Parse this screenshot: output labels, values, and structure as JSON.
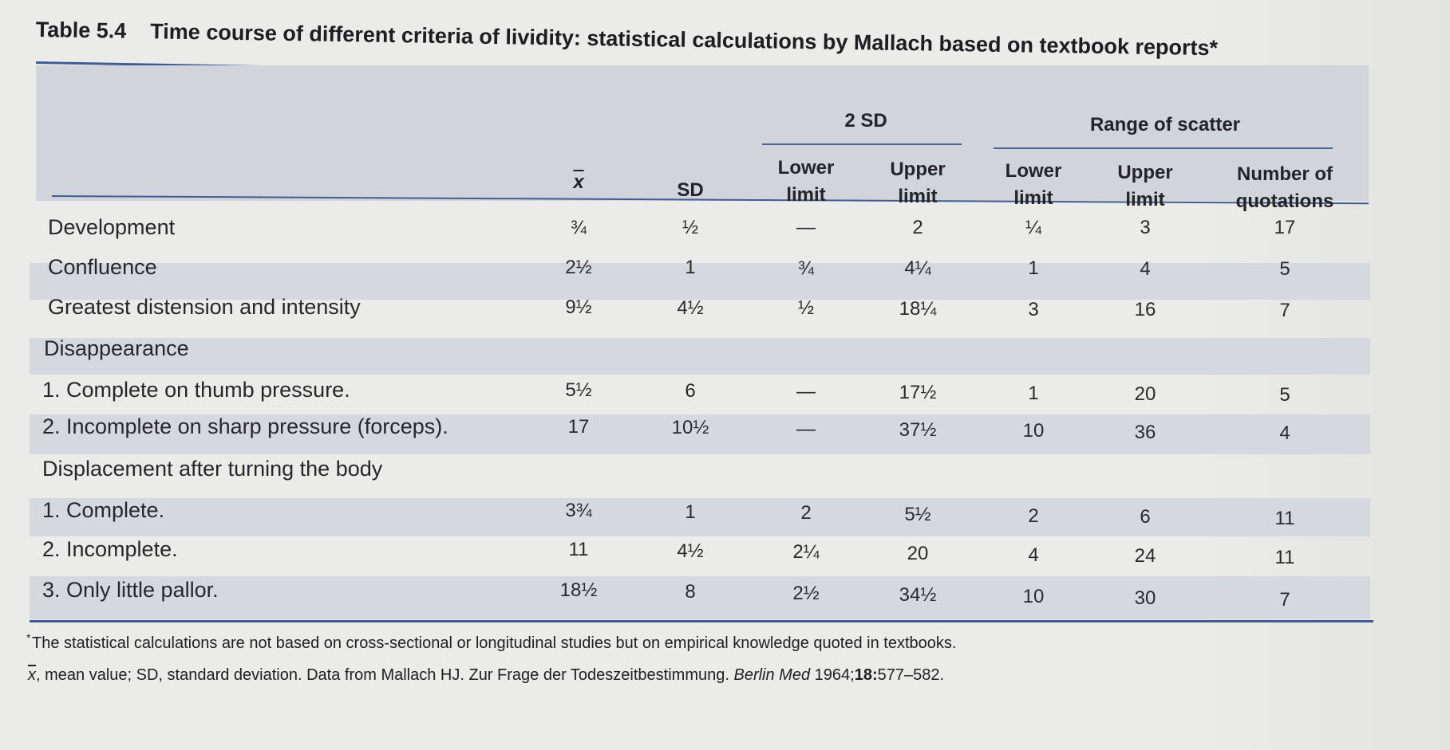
{
  "caption": {
    "number": "Table 5.4",
    "title": "Time course of different criteria of lividity: statistical calculations by Mallach based on textbook reports*"
  },
  "header": {
    "group_2sd": "2 SD",
    "group_range": "Range of scatter",
    "col_mean": "x",
    "col_sd": "SD",
    "col_lower_2sd": [
      "Lower",
      "limit"
    ],
    "col_upper_2sd": [
      "Upper",
      "limit"
    ],
    "col_lower_range": [
      "Lower",
      "limit"
    ],
    "col_upper_range": [
      "Upper",
      "limit"
    ],
    "col_quotations": [
      "Number of",
      "quotations"
    ]
  },
  "rows": [
    {
      "label": "Development",
      "mean": "¾",
      "sd": "½",
      "lower_2sd": "—",
      "upper_2sd": "2",
      "lower_range": "¼",
      "upper_range": "3",
      "quotations": "17"
    },
    {
      "label": "Confluence",
      "mean": "2½",
      "sd": "1",
      "lower_2sd": "¾",
      "upper_2sd": "4¼",
      "lower_range": "1",
      "upper_range": "4",
      "quotations": "5"
    },
    {
      "label": "Greatest distension and intensity",
      "mean": "9½",
      "sd": "4½",
      "lower_2sd": "½",
      "upper_2sd": "18¼",
      "lower_range": "3",
      "upper_range": "16",
      "quotations": "7"
    },
    {
      "label": "Disappearance",
      "mean": "",
      "sd": "",
      "lower_2sd": "",
      "upper_2sd": "",
      "lower_range": "",
      "upper_range": "",
      "quotations": ""
    },
    {
      "label": "1. Complete on thumb pressure.",
      "mean": "5½",
      "sd": "6",
      "lower_2sd": "—",
      "upper_2sd": "17½",
      "lower_range": "1",
      "upper_range": "20",
      "quotations": "5"
    },
    {
      "label": "2. Incomplete on sharp pressure (forceps).",
      "mean": "17",
      "sd": "10½",
      "lower_2sd": "—",
      "upper_2sd": "37½",
      "lower_range": "10",
      "upper_range": "36",
      "quotations": "4"
    },
    {
      "label": "Displacement after turning the body",
      "mean": "",
      "sd": "",
      "lower_2sd": "",
      "upper_2sd": "",
      "lower_range": "",
      "upper_range": "",
      "quotations": ""
    },
    {
      "label": "1. Complete.",
      "mean": "3¾",
      "sd": "1",
      "lower_2sd": "2",
      "upper_2sd": "5½",
      "lower_range": "2",
      "upper_range": "6",
      "quotations": "11"
    },
    {
      "label": "2. Incomplete.",
      "mean": "11",
      "sd": "4½",
      "lower_2sd": "2¼",
      "upper_2sd": "20",
      "lower_range": "4",
      "upper_range": "24",
      "quotations": "11"
    },
    {
      "label": "3. Only little pallor.",
      "mean": "18½",
      "sd": "8",
      "lower_2sd": "2½",
      "upper_2sd": "34½",
      "lower_range": "10",
      "upper_range": "30",
      "quotations": "7"
    }
  ],
  "footnotes": {
    "star": "*",
    "line1": "The statistical calculations are not based on cross-sectional or longitudinal studies but on empirical knowledge quoted in textbooks.",
    "line2_symbol": "x",
    "line2_a": ", mean value; SD, standard deviation. Data from Mallach HJ. Zur Frage der Todeszeitbestimmung. ",
    "line2_journal": "Berlin Med",
    "line2_year": " 1964;",
    "line2_volume": "18:",
    "line2_pages": "577–582."
  }
}
